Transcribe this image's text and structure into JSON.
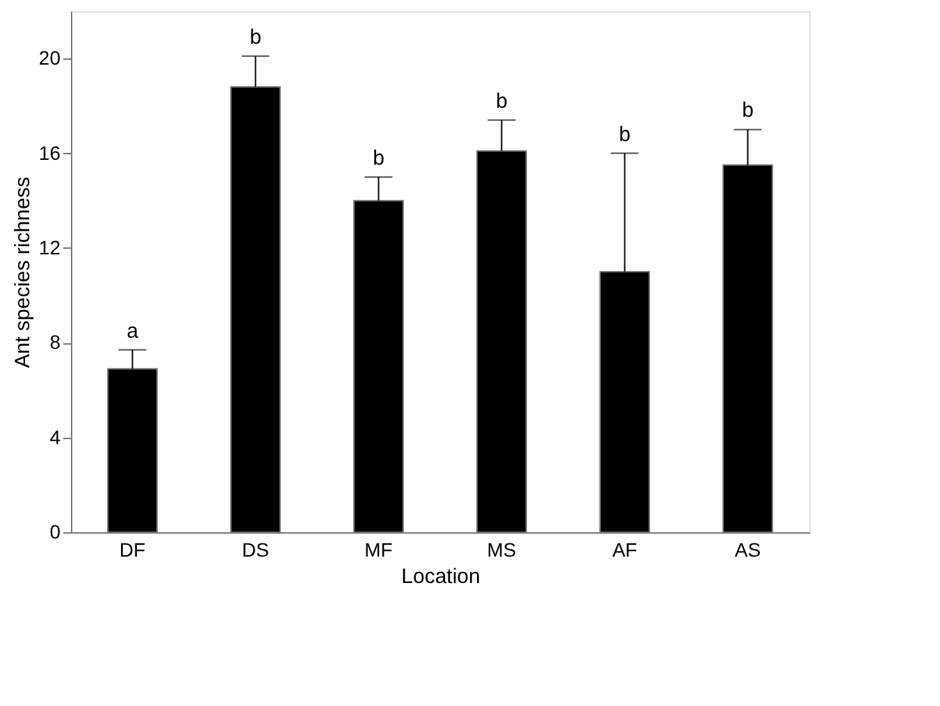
{
  "chart_data": {
    "type": "bar",
    "xlabel": "Location",
    "ylabel": "Ant species richness",
    "categories": [
      "DF",
      "DS",
      "MF",
      "MS",
      "AF",
      "AS"
    ],
    "values": [
      6.9,
      18.8,
      14.0,
      16.1,
      11.0,
      15.5
    ],
    "color": "#000000",
    "errors": [
      [
        6.9,
        7.7
      ],
      [
        18.8,
        20.1
      ],
      [
        14.0,
        15.0
      ],
      [
        16.1,
        17.4
      ],
      [
        11.0,
        16.0
      ],
      [
        15.5,
        17.0
      ]
    ],
    "ylim": [
      0,
      22
    ],
    "yticks": [
      0,
      4,
      8,
      12,
      16,
      20
    ],
    "grid": false,
    "annotations": [
      {
        "text": "a",
        "x": "DF",
        "y": 7.7
      },
      {
        "text": "b",
        "x": "DS",
        "y": 20.1
      },
      {
        "text": "b",
        "x": "MF",
        "y": 15.0
      },
      {
        "text": "b",
        "x": "MS",
        "y": 17.4
      },
      {
        "text": "b",
        "x": "AF",
        "y": 16.0
      },
      {
        "text": "b",
        "x": "AS",
        "y": 17.0
      }
    ]
  }
}
